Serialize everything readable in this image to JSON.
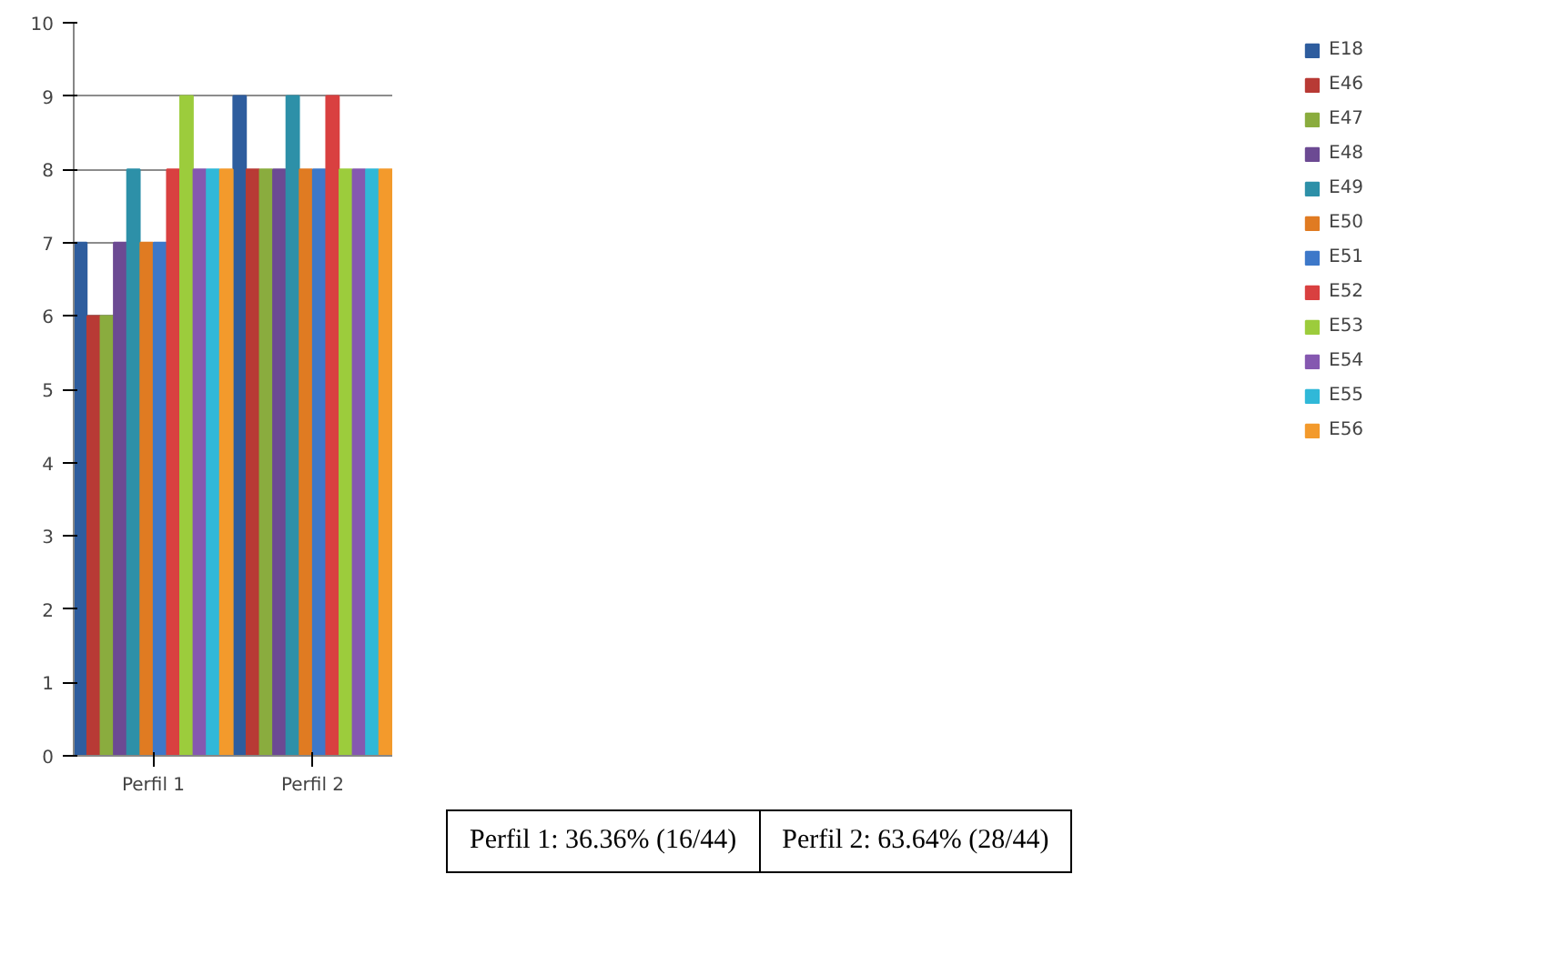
{
  "chart_data": {
    "type": "bar",
    "categories": [
      "Perfil 1",
      "Perfil 2"
    ],
    "series": [
      {
        "name": "E18",
        "color": "#2e5d9e",
        "values": [
          7,
          9
        ]
      },
      {
        "name": "E46",
        "color": "#b83a35",
        "values": [
          6,
          8
        ]
      },
      {
        "name": "E47",
        "color": "#8aac3e",
        "values": [
          6,
          8
        ]
      },
      {
        "name": "E48",
        "color": "#6c4a93",
        "values": [
          7,
          8
        ]
      },
      {
        "name": "E49",
        "color": "#2d90a8",
        "values": [
          8,
          9
        ]
      },
      {
        "name": "E50",
        "color": "#e07b22",
        "values": [
          7,
          8
        ]
      },
      {
        "name": "E51",
        "color": "#3d78c9",
        "values": [
          7,
          8
        ]
      },
      {
        "name": "E52",
        "color": "#d94040",
        "values": [
          8,
          9
        ]
      },
      {
        "name": "E53",
        "color": "#9ccc3c",
        "values": [
          9,
          8
        ]
      },
      {
        "name": "E54",
        "color": "#8558b0",
        "values": [
          8,
          8
        ]
      },
      {
        "name": "E55",
        "color": "#30b8d8",
        "values": [
          8,
          8
        ]
      },
      {
        "name": "E56",
        "color": "#f39a2c",
        "values": [
          8,
          8
        ]
      }
    ],
    "ylim": [
      0,
      10
    ],
    "yticks": [
      0,
      1,
      2,
      3,
      4,
      5,
      6,
      7,
      8,
      9,
      10
    ],
    "grid": "y",
    "legend": "right",
    "annotations": [
      "Perfil 1: 36.36% (16/44)",
      "Perfil 2: 63.64% (28/44)"
    ]
  }
}
